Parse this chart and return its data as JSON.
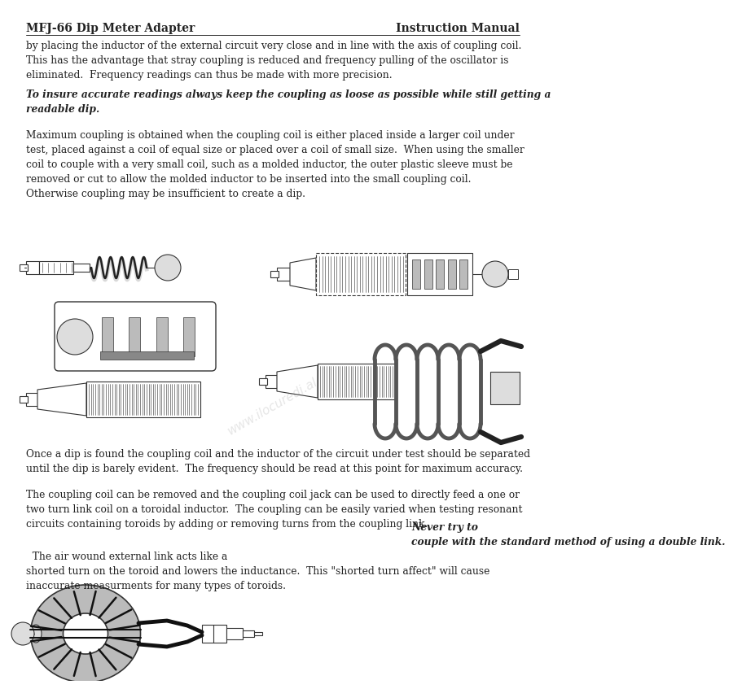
{
  "header_left": "MFJ-66 Dip Meter Adapter",
  "header_right": "Instruction Manual",
  "para1": "by placing the inductor of the external circuit very close and in line with the axis of coupling coil.\nThis has the advantage that stray coupling is reduced and frequency pulling of the oscillator is\neliminated.  Frequency readings can thus be made with more precision.",
  "italic_para": "To insure accurate readings always keep the coupling as loose as possible while still getting a\nreadable dip.",
  "para2": "Maximum coupling is obtained when the coupling coil is either placed inside a larger coil under\ntest, placed against a coil of equal size or placed over a coil of small size.  When using the smaller\ncoil to couple with a very small coil, such as a molded inductor, the outer plastic sleeve must be\nremoved or cut to allow the molded inductor to be inserted into the small coupling coil.\nOtherwise coupling may be insufficient to create a dip.",
  "para3": "Once a dip is found the coupling coil and the inductor of the circuit under test should be separated\nuntil the dip is barely evident.  The frequency should be read at this point for maximum accuracy.",
  "para4a": "The coupling coil can be removed and the coupling coil jack can be used to directly feed a one or\ntwo turn link coil on a toroidal inductor.  The coupling can be easily varied when testing resonant\ncircuits containing toroids by adding or removing turns from the coupling link.  ",
  "para4b": "Never try to\ncouple with the standard method of using a double link.",
  "para4c": "  The air wound external link acts like a\nshorted turn on the toroid and lowers the inductance.  This \"shorted turn affect\" will cause\ninaccurate measurments for many types of toroids.",
  "bg_color": "#ffffff",
  "text_color": "#222222",
  "line_color": "#333333",
  "gray_fill": "#bbbbbb",
  "light_gray": "#dddddd",
  "dark_gray": "#888888",
  "font_size_header": 10,
  "font_size_body": 8.8,
  "watermark": "www.ilocuredi.al"
}
